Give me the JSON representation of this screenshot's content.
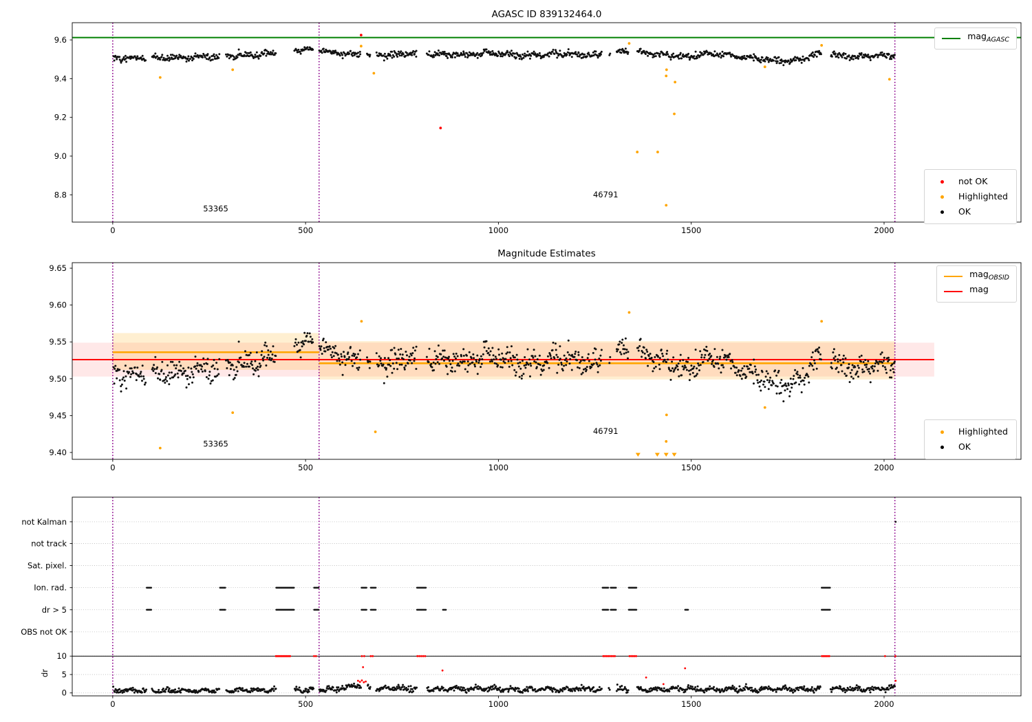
{
  "chart_data": [
    {
      "id": "mag_overview",
      "type": "scatter",
      "title": "AGASC ID 839132464.0",
      "xlim": [
        -105,
        2355
      ],
      "ylim": [
        8.659,
        9.689
      ],
      "x_ticks": [
        {
          "v": 0,
          "label": "0"
        },
        {
          "v": 500,
          "label": "500"
        },
        {
          "v": 1000,
          "label": "1000"
        },
        {
          "v": 1500,
          "label": "1500"
        },
        {
          "v": 2000,
          "label": "2000"
        }
      ],
      "y_ticks": [
        {
          "v": 8.8,
          "label": "8.8"
        },
        {
          "v": 9.0,
          "label": "9.0"
        },
        {
          "v": 9.2,
          "label": "9.2"
        },
        {
          "v": 9.4,
          "label": "9.4"
        },
        {
          "v": 9.6,
          "label": "9.6"
        }
      ],
      "vlines": {
        "color": "#8B008B",
        "xs": [
          0,
          535,
          2028
        ]
      },
      "hline": {
        "y": 9.612,
        "color": "#008000"
      },
      "legend_line": {
        "main": "mag",
        "sub": "AGASC",
        "color": "#008000"
      },
      "legend_markers": [
        {
          "label": "not OK",
          "color": "#ff0000"
        },
        {
          "label": "Highlighted",
          "color": "#FFA500"
        },
        {
          "label": "OK",
          "color": "#000000"
        }
      ],
      "annotations": [
        {
          "x": 267,
          "y": 8.714,
          "text": "53365"
        },
        {
          "x": 1278,
          "y": 8.787,
          "text": "46791"
        }
      ],
      "points_red": [
        [
          644,
          9.625
        ],
        [
          850,
          9.145
        ]
      ],
      "points_orange": [
        [
          123,
          9.406
        ],
        [
          311,
          9.446
        ],
        [
          644,
          9.568
        ],
        [
          677,
          9.428
        ],
        [
          1339,
          9.582
        ],
        [
          1436,
          9.446
        ],
        [
          1435,
          9.414
        ],
        [
          1458,
          9.382
        ],
        [
          1456,
          9.218
        ],
        [
          1360,
          9.021
        ],
        [
          1413,
          9.021
        ],
        [
          1435,
          8.746
        ],
        [
          1691,
          9.461
        ],
        [
          1838,
          9.572
        ],
        [
          2014,
          9.397
        ]
      ],
      "series_ref": "mag_band"
    },
    {
      "id": "magnitude_estimates",
      "type": "scatter",
      "title": "Magnitude Estimates",
      "xlim": [
        -105,
        2355
      ],
      "ylim": [
        9.3907,
        9.6575
      ],
      "x_ticks": [
        {
          "v": 0,
          "label": "0"
        },
        {
          "v": 500,
          "label": "500"
        },
        {
          "v": 1000,
          "label": "1000"
        },
        {
          "v": 1500,
          "label": "1500"
        },
        {
          "v": 2000,
          "label": "2000"
        }
      ],
      "y_ticks": [
        {
          "v": 9.4,
          "label": "9.40"
        },
        {
          "v": 9.45,
          "label": "9.45"
        },
        {
          "v": 9.5,
          "label": "9.50"
        },
        {
          "v": 9.55,
          "label": "9.55"
        },
        {
          "v": 9.6,
          "label": "9.60"
        },
        {
          "v": 9.65,
          "label": "9.65"
        }
      ],
      "vlines": {
        "color": "#8B008B",
        "xs": [
          0,
          535,
          2028
        ]
      },
      "bands": [
        {
          "x0": -105,
          "x1": 2130,
          "y0": 9.503,
          "y1": 9.549,
          "color": "rgba(255,0,0,0.09)"
        },
        {
          "x0": 0,
          "x1": 535,
          "y0": 9.512,
          "y1": 9.562,
          "color": "rgba(255,165,0,0.18)"
        },
        {
          "x0": 535,
          "x1": 2028,
          "y0": 9.499,
          "y1": 9.551,
          "color": "rgba(255,165,0,0.18)"
        }
      ],
      "lines": [
        {
          "x0": -105,
          "x1": 2130,
          "y": 9.526,
          "color": "#ff0000",
          "w": 2
        },
        {
          "x0": 0,
          "x1": 535,
          "y": 9.536,
          "color": "#FFA500",
          "w": 2.6
        },
        {
          "x0": 535,
          "x1": 2028,
          "y": 9.521,
          "color": "#FFA500",
          "w": 2.6
        }
      ],
      "legend_lines": [
        {
          "main": "mag",
          "sub": "OBSID",
          "color": "#FFA500"
        },
        {
          "main": "mag",
          "sub": "",
          "color": "#ff0000"
        }
      ],
      "legend_markers": [
        {
          "label": "Highlighted",
          "color": "#FFA500"
        },
        {
          "label": "OK",
          "color": "#000000"
        }
      ],
      "annotations": [
        {
          "x": 267,
          "y": 9.408,
          "text": "53365"
        },
        {
          "x": 1278,
          "y": 9.425,
          "text": "46791"
        }
      ],
      "points_orange": [
        [
          123,
          9.406
        ],
        [
          311,
          9.454
        ],
        [
          645,
          9.578
        ],
        [
          681,
          9.428
        ],
        [
          1339,
          9.59
        ],
        [
          1436,
          9.451
        ],
        [
          1435,
          9.415
        ],
        [
          1691,
          9.461
        ],
        [
          1838,
          9.578
        ]
      ],
      "triangles_orange": [
        1362,
        1412,
        1435,
        1456
      ],
      "series_ref": "mag_band"
    },
    {
      "id": "flags_and_dr",
      "type": "scatter",
      "xlim": [
        -105,
        2355
      ],
      "ylim": [
        -0.8,
        53.2
      ],
      "x_ticks": [
        {
          "v": 0,
          "label": "0"
        },
        {
          "v": 500,
          "label": "500"
        },
        {
          "v": 1000,
          "label": "1000"
        },
        {
          "v": 1500,
          "label": "1500"
        },
        {
          "v": 2000,
          "label": "2000"
        }
      ],
      "dr_ticks": [
        {
          "v": 0,
          "label": "0"
        },
        {
          "v": 5,
          "label": "5"
        },
        {
          "v": 10,
          "label": "10"
        }
      ],
      "dr_label": "dr",
      "rows": [
        {
          "label": "not Kalman",
          "y": 46.5
        },
        {
          "label": "not track",
          "y": 40.6
        },
        {
          "label": "Sat. pixel.",
          "y": 34.6
        },
        {
          "label": "Ion. rad.",
          "y": 28.6
        },
        {
          "label": "dr > 5",
          "y": 22.6
        },
        {
          "label": "OBS not OK",
          "y": 16.6
        }
      ],
      "hline_y": 10,
      "vlines": {
        "color": "#8B008B",
        "xs": [
          0,
          535,
          2028
        ]
      },
      "clusters": {
        "ion_rad_y": 28.6,
        "dr5_y": 22.6,
        "ion_rad": [
          [
            88,
            100,
            6
          ],
          [
            278,
            292,
            6
          ],
          [
            424,
            470,
            22
          ],
          [
            522,
            534,
            5
          ],
          [
            645,
            658,
            5
          ],
          [
            669,
            682,
            5
          ],
          [
            789,
            812,
            9
          ],
          [
            1270,
            1285,
            7
          ],
          [
            1291,
            1305,
            7
          ],
          [
            1338,
            1358,
            9
          ],
          [
            1838,
            1860,
            9
          ]
        ],
        "dr5_extra": [
          [
            856,
            864,
            3
          ],
          [
            1484,
            1492,
            4
          ]
        ]
      },
      "single_black": [
        {
          "y": 46.5,
          "x": 2030
        }
      ],
      "red_clipped_y": 10,
      "red_clipped": [
        [
          423,
          460,
          13
        ],
        [
          522,
          527,
          2
        ],
        [
          646,
          652,
          2
        ],
        [
          669,
          674,
          2
        ],
        [
          790,
          810,
          5
        ],
        [
          1272,
          1302,
          8
        ],
        [
          1340,
          1357,
          5
        ],
        [
          1839,
          1858,
          6
        ],
        [
          2002,
          2003,
          1
        ],
        [
          2029,
          2030,
          1
        ]
      ],
      "red_scatter": [
        [
          649,
          7.0
        ],
        [
          636,
          3.3
        ],
        [
          641,
          3.0
        ],
        [
          646,
          3.4
        ],
        [
          651,
          2.9
        ],
        [
          656,
          3.1
        ],
        [
          855,
          6.1
        ],
        [
          1383,
          4.2
        ],
        [
          1428,
          2.4
        ],
        [
          1484,
          6.7
        ],
        [
          2030,
          3.3
        ]
      ],
      "series_ref": "dr_trace"
    }
  ],
  "series": {
    "mag_band": {
      "n": 1200,
      "x_range": [
        2,
        2028
      ],
      "sigma": 0.0082,
      "zigzag": {
        "amp": 0.0062,
        "period": 57
      },
      "control": [
        [
          0,
          9.504
        ],
        [
          60,
          9.506
        ],
        [
          120,
          9.507
        ],
        [
          180,
          9.509
        ],
        [
          240,
          9.512
        ],
        [
          300,
          9.516
        ],
        [
          350,
          9.521
        ],
        [
          400,
          9.53
        ],
        [
          440,
          9.539
        ],
        [
          470,
          9.546
        ],
        [
          500,
          9.552
        ],
        [
          525,
          9.556
        ],
        [
          540,
          9.549
        ],
        [
          560,
          9.538
        ],
        [
          580,
          9.532
        ],
        [
          620,
          9.527
        ],
        [
          660,
          9.524
        ],
        [
          700,
          9.52
        ],
        [
          740,
          9.523
        ],
        [
          780,
          9.528
        ],
        [
          820,
          9.529
        ],
        [
          860,
          9.524
        ],
        [
          900,
          9.521
        ],
        [
          940,
          9.528
        ],
        [
          980,
          9.533
        ],
        [
          1020,
          9.526
        ],
        [
          1060,
          9.518
        ],
        [
          1100,
          9.521
        ],
        [
          1140,
          9.527
        ],
        [
          1180,
          9.529
        ],
        [
          1220,
          9.523
        ],
        [
          1260,
          9.518
        ],
        [
          1300,
          9.531
        ],
        [
          1330,
          9.543
        ],
        [
          1360,
          9.54
        ],
        [
          1390,
          9.53
        ],
        [
          1420,
          9.523
        ],
        [
          1450,
          9.518
        ],
        [
          1480,
          9.513
        ],
        [
          1510,
          9.517
        ],
        [
          1540,
          9.527
        ],
        [
          1570,
          9.529
        ],
        [
          1600,
          9.521
        ],
        [
          1630,
          9.513
        ],
        [
          1660,
          9.507
        ],
        [
          1690,
          9.499
        ],
        [
          1720,
          9.491
        ],
        [
          1750,
          9.488
        ],
        [
          1780,
          9.503
        ],
        [
          1810,
          9.519
        ],
        [
          1840,
          9.529
        ],
        [
          1870,
          9.523
        ],
        [
          1900,
          9.515
        ],
        [
          1930,
          9.512
        ],
        [
          1960,
          9.515
        ],
        [
          1990,
          9.518
        ],
        [
          2028,
          9.521
        ]
      ]
    },
    "dr_trace": {
      "n": 1200,
      "x_range": [
        2,
        2028
      ],
      "sigma": 0.33,
      "min": 0.06,
      "zigzag": {
        "amp": 0.42,
        "period": 47
      },
      "control": [
        [
          0,
          0.55
        ],
        [
          80,
          0.65
        ],
        [
          160,
          0.55
        ],
        [
          240,
          0.6
        ],
        [
          320,
          0.7
        ],
        [
          400,
          0.75
        ],
        [
          470,
          0.85
        ],
        [
          535,
          1.0
        ],
        [
          570,
          0.9
        ],
        [
          600,
          1.3
        ],
        [
          630,
          2.1
        ],
        [
          655,
          1.7
        ],
        [
          690,
          1.1
        ],
        [
          730,
          1.3
        ],
        [
          770,
          1.0
        ],
        [
          810,
          1.2
        ],
        [
          850,
          0.95
        ],
        [
          890,
          1.1
        ],
        [
          930,
          0.95
        ],
        [
          970,
          1.15
        ],
        [
          1010,
          1.0
        ],
        [
          1060,
          0.9
        ],
        [
          1110,
          1.05
        ],
        [
          1160,
          0.9
        ],
        [
          1210,
          1.05
        ],
        [
          1260,
          0.95
        ],
        [
          1310,
          1.1
        ],
        [
          1360,
          1.0
        ],
        [
          1410,
          0.95
        ],
        [
          1460,
          1.05
        ],
        [
          1510,
          1.1
        ],
        [
          1560,
          0.95
        ],
        [
          1610,
          1.0
        ],
        [
          1660,
          0.9
        ],
        [
          1710,
          1.0
        ],
        [
          1760,
          0.95
        ],
        [
          1810,
          1.05
        ],
        [
          1860,
          1.1
        ],
        [
          1910,
          1.15
        ],
        [
          1960,
          1.05
        ],
        [
          2000,
          1.3
        ],
        [
          2028,
          1.4
        ]
      ]
    }
  }
}
